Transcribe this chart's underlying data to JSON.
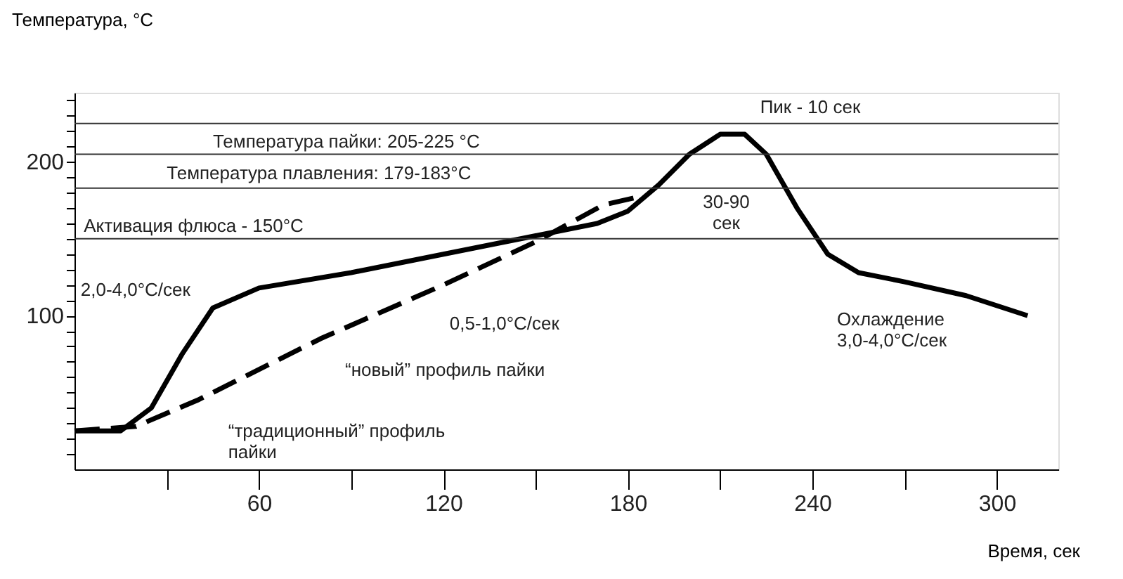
{
  "chart_data": {
    "type": "line",
    "xlabel": "Время, сек",
    "ylabel": "Температура, °C",
    "xlim": [
      0,
      320
    ],
    "ylim": [
      0,
      245
    ],
    "xticks": [
      {
        "value": 30,
        "label": null
      },
      60,
      {
        "value": 90,
        "label": null
      },
      120,
      {
        "value": 150,
        "label": null
      },
      180,
      {
        "value": 210,
        "label": null
      },
      240,
      {
        "value": 270,
        "label": null
      },
      300
    ],
    "yticks": [
      {
        "value": 10,
        "label": null
      },
      {
        "value": 20,
        "label": null
      },
      {
        "value": 30,
        "label": null
      },
      {
        "value": 40,
        "label": null
      },
      {
        "value": 50,
        "label": null
      },
      {
        "value": 60,
        "label": null
      },
      {
        "value": 70,
        "label": null
      },
      {
        "value": 80,
        "label": null
      },
      {
        "value": 90,
        "label": null
      },
      100,
      {
        "value": 110,
        "label": null
      },
      {
        "value": 120,
        "label": null
      },
      {
        "value": 130,
        "label": null
      },
      {
        "value": 140,
        "label": null
      },
      {
        "value": 150,
        "label": null
      },
      {
        "value": 160,
        "label": null
      },
      {
        "value": 170,
        "label": null
      },
      {
        "value": 180,
        "label": null
      },
      {
        "value": 190,
        "label": null
      },
      200,
      {
        "value": 210,
        "label": null
      },
      {
        "value": 220,
        "label": null
      },
      {
        "value": 230,
        "label": null
      },
      {
        "value": 240,
        "label": null
      }
    ],
    "grid": false,
    "series": [
      {
        "color": "#000000",
        "line_style": "solid",
        "x": [
          0,
          15,
          25,
          35,
          45,
          60,
          90,
          120,
          150,
          170,
          180,
          190,
          200,
          210,
          218,
          225,
          235,
          245,
          255,
          270,
          290,
          310
        ],
        "values": [
          25,
          25,
          40,
          75,
          105,
          118,
          128,
          140,
          152,
          160,
          168,
          185,
          205,
          218,
          218,
          205,
          170,
          140,
          128,
          122,
          113,
          100
        ]
      },
      {
        "color": "#000000",
        "line_style": "dashed",
        "x": [
          0,
          20,
          40,
          80,
          120,
          150,
          172,
          185
        ],
        "values": [
          25,
          28,
          45,
          85,
          120,
          148,
          172,
          178
        ]
      }
    ],
    "ref_lines": [
      {
        "axis": "y",
        "value": 225,
        "label": null
      },
      {
        "axis": "y",
        "value": 205,
        "label": "Температура пайки: 205-225 °C"
      },
      {
        "axis": "y",
        "value": 183,
        "label": null
      },
      {
        "axis": "y",
        "value": 150,
        "label": "Активация флюса - 150°C"
      }
    ],
    "annotations": [
      "Температура плавления: 179-183°C",
      "2,0-4,0°C/сек",
      "0,5-1,0°C/сек",
      "“новый” профиль пайки",
      "“традиционный” профиль\nпайки",
      "Охлаждение\n3,0-4,0°C/сек",
      "30-90\nсек",
      "Пик - 10 сек"
    ]
  }
}
